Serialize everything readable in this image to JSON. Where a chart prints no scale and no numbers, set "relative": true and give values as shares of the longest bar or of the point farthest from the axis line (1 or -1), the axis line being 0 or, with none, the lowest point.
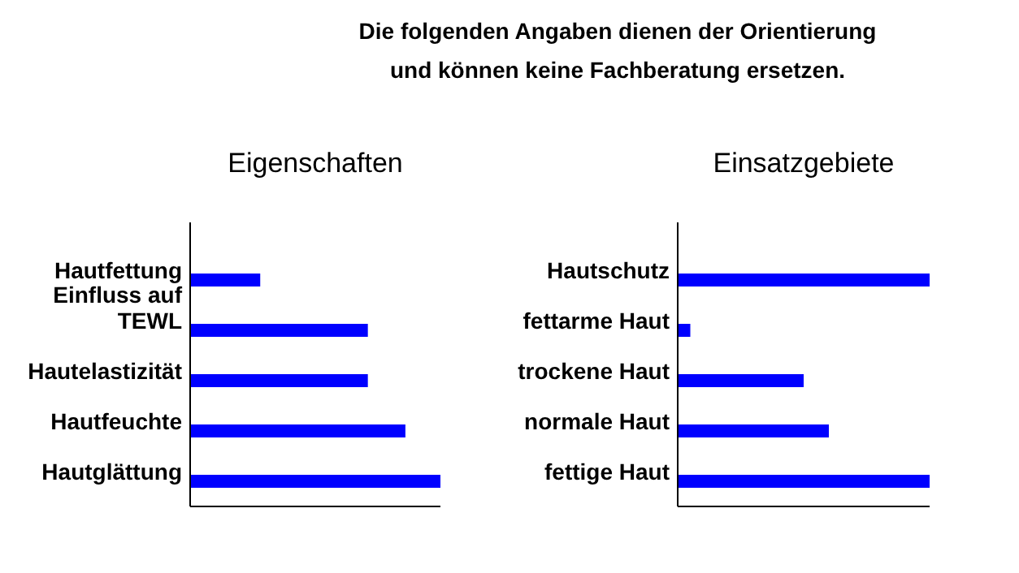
{
  "chart_data": [
    {
      "type": "bar",
      "orientation": "horizontal",
      "relative": true,
      "title": "Eigenschaften",
      "annotations": [
        "Die folgenden Angaben dienen der Orientierung und können keine Fachberatung ersetzen."
      ],
      "categories": [
        "Hautfettung",
        "Einfluss auf TEWL",
        "Hautelastizität",
        "Hautfeuchte",
        "Hautglättung"
      ],
      "values": [
        0.28,
        0.71,
        0.71,
        0.86,
        1
      ],
      "color": "#0000ff"
    },
    {
      "type": "bar",
      "orientation": "horizontal",
      "relative": true,
      "title": "Einsatzgebiete",
      "categories": [
        "Hautschutz",
        "fettarme Haut",
        "trockene Haut",
        "normale Haut",
        "fettige Haut"
      ],
      "values": [
        1,
        0.05,
        0.5,
        0.6,
        1
      ],
      "color": "#0000ff"
    }
  ]
}
